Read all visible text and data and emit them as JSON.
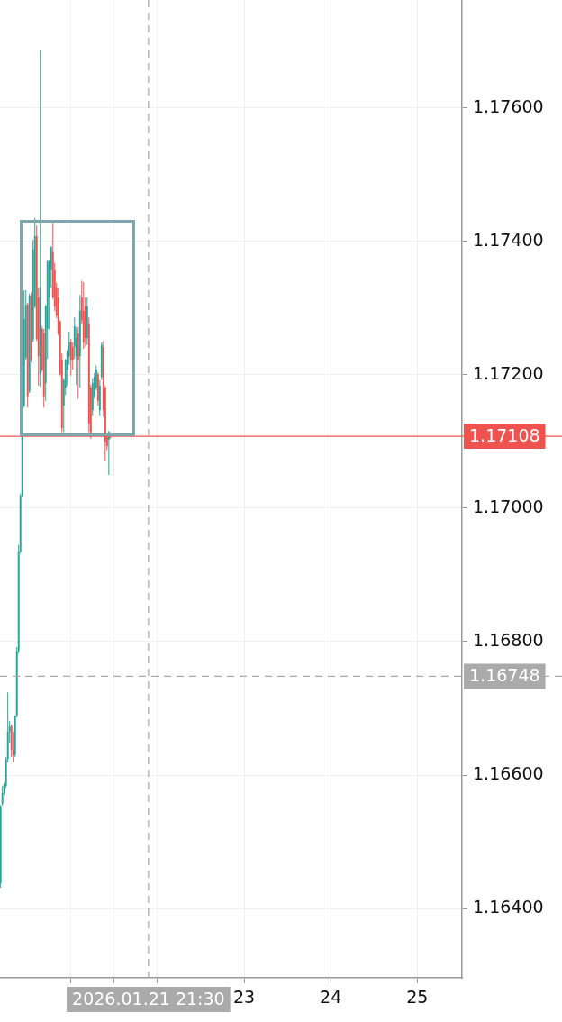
{
  "chart_data": {
    "type": "candlestick",
    "x": [
      "2026-01-20T04:30",
      "2026-01-20T05:00",
      "2026-01-20T05:30",
      "2026-01-20T06:00",
      "2026-01-20T06:30",
      "2026-01-20T07:00",
      "2026-01-20T07:30",
      "2026-01-20T08:00",
      "2026-01-20T08:30",
      "2026-01-20T09:00",
      "2026-01-20T09:30",
      "2026-01-20T10:00",
      "2026-01-20T10:30",
      "2026-01-20T11:00",
      "2026-01-20T11:30",
      "2026-01-20T12:00",
      "2026-01-20T12:30",
      "2026-01-20T13:00",
      "2026-01-20T13:30",
      "2026-01-20T14:00",
      "2026-01-20T14:30",
      "2026-01-20T15:00",
      "2026-01-20T15:30",
      "2026-01-20T16:00",
      "2026-01-20T16:30",
      "2026-01-20T17:00",
      "2026-01-20T17:30",
      "2026-01-20T18:00",
      "2026-01-20T18:30",
      "2026-01-20T19:00",
      "2026-01-20T19:30",
      "2026-01-20T20:00",
      "2026-01-20T20:30",
      "2026-01-20T21:00",
      "2026-01-20T21:30",
      "2026-01-20T22:00",
      "2026-01-20T22:30",
      "2026-01-20T23:00",
      "2026-01-20T23:30",
      "2026-01-21T00:00",
      "2026-01-21T00:30",
      "2026-01-21T01:00",
      "2026-01-21T01:30",
      "2026-01-21T02:00",
      "2026-01-21T02:30",
      "2026-01-21T03:00",
      "2026-01-21T03:30",
      "2026-01-21T04:00",
      "2026-01-21T04:30",
      "2026-01-21T05:00",
      "2026-01-21T05:30",
      "2026-01-21T06:00",
      "2026-01-21T06:30",
      "2026-01-21T07:00",
      "2026-01-21T07:30",
      "2026-01-21T08:00",
      "2026-01-21T08:30",
      "2026-01-21T09:00",
      "2026-01-21T09:30",
      "2026-01-21T10:00",
      "2026-01-21T10:30",
      "2026-01-21T11:00"
    ],
    "ohlc": [
      [
        1.16438,
        1.16555,
        1.16431,
        1.16553
      ],
      [
        1.16557,
        1.16584,
        1.16554,
        1.16573
      ],
      [
        1.16573,
        1.16589,
        1.1657,
        1.16586
      ],
      [
        1.16584,
        1.16627,
        1.16581,
        1.16624
      ],
      [
        1.16624,
        1.16724,
        1.16619,
        1.16665
      ],
      [
        1.16665,
        1.16681,
        1.16649,
        1.16673
      ],
      [
        1.16673,
        1.16676,
        1.16627,
        1.16638
      ],
      [
        1.16638,
        1.16665,
        1.16619,
        1.1663
      ],
      [
        1.1663,
        1.16689,
        1.16627,
        1.16689
      ],
      [
        1.16689,
        1.16792,
        1.16686,
        1.16786
      ],
      [
        1.16786,
        1.16945,
        1.16782,
        1.16935
      ],
      [
        1.16935,
        1.17022,
        1.16932,
        1.17019
      ],
      [
        1.17019,
        1.17218,
        1.17016,
        1.17218
      ],
      [
        1.17154,
        1.17327,
        1.17151,
        1.17284
      ],
      [
        1.17226,
        1.17327,
        1.17222,
        1.17305
      ],
      [
        1.17305,
        1.17308,
        1.17151,
        1.17168
      ],
      [
        1.17176,
        1.17322,
        1.17173,
        1.17319
      ],
      [
        1.17319,
        1.17324,
        1.17219,
        1.17222
      ],
      [
        1.17253,
        1.17403,
        1.17249,
        1.17388
      ],
      [
        1.17303,
        1.17435,
        1.173,
        1.17408
      ],
      [
        1.17408,
        1.17424,
        1.17251,
        1.17254
      ],
      [
        1.17316,
        1.1733,
        1.17184,
        1.17228
      ],
      [
        1.17201,
        1.17686,
        1.17182,
        1.1733
      ],
      [
        1.17269,
        1.17273,
        1.17205,
        1.17208
      ],
      [
        1.17262,
        1.17269,
        1.17151,
        1.17168
      ],
      [
        1.17188,
        1.17305,
        1.17161,
        1.17303
      ],
      [
        1.17269,
        1.17373,
        1.17224,
        1.1737
      ],
      [
        1.17316,
        1.17373,
        1.17268,
        1.1737
      ],
      [
        1.17357,
        1.17393,
        1.1733,
        1.17391
      ],
      [
        1.17384,
        1.17428,
        1.17314,
        1.17316
      ],
      [
        1.17357,
        1.17368,
        1.17296,
        1.17303
      ],
      [
        1.1733,
        1.17338,
        1.17285,
        1.17289
      ],
      [
        1.17316,
        1.1733,
        1.17259,
        1.17262
      ],
      [
        1.1728,
        1.17282,
        1.17199,
        1.17201
      ],
      [
        1.17222,
        1.17232,
        1.17114,
        1.1712
      ],
      [
        1.17154,
        1.17195,
        1.17114,
        1.17192
      ],
      [
        1.17181,
        1.17224,
        1.1717,
        1.17222
      ],
      [
        1.17208,
        1.17238,
        1.17184,
        1.17235
      ],
      [
        1.17228,
        1.17265,
        1.17215,
        1.17249
      ],
      [
        1.17249,
        1.17254,
        1.17199,
        1.17222
      ],
      [
        1.17242,
        1.17249,
        1.17208,
        1.17222
      ],
      [
        1.17242,
        1.17286,
        1.17224,
        1.17273
      ],
      [
        1.17228,
        1.17272,
        1.17185,
        1.17255
      ],
      [
        1.17262,
        1.17272,
        1.17164,
        1.17222
      ],
      [
        1.17228,
        1.1732,
        1.17181,
        1.17296
      ],
      [
        1.17316,
        1.17341,
        1.17276,
        1.17282
      ],
      [
        1.17296,
        1.17339,
        1.17239,
        1.17249
      ],
      [
        1.17303,
        1.17316,
        1.17242,
        1.17255
      ],
      [
        1.17255,
        1.17316,
        1.17245,
        1.17303
      ],
      [
        1.17276,
        1.17286,
        1.17114,
        1.17127
      ],
      [
        1.17181,
        1.17185,
        1.17104,
        1.17114
      ],
      [
        1.17147,
        1.17195,
        1.17138,
        1.17188
      ],
      [
        1.17168,
        1.17203,
        1.17164,
        1.17197
      ],
      [
        1.17181,
        1.17214,
        1.17177,
        1.17208
      ],
      [
        1.17201,
        1.17204,
        1.17154,
        1.17161
      ],
      [
        1.17147,
        1.17192,
        1.17138,
        1.17184
      ],
      [
        1.17197,
        1.17249,
        1.17192,
        1.17245
      ],
      [
        1.17242,
        1.17251,
        1.17137,
        1.17147
      ],
      [
        1.17181,
        1.17184,
        1.1707,
        1.171
      ],
      [
        1.17107,
        1.1711,
        1.17087,
        1.17093
      ],
      [
        1.17103,
        1.17116,
        1.1705,
        1.17114
      ],
      [
        1.1711,
        1.17114,
        1.17104,
        1.17108
      ]
    ],
    "colors": [
      "#26a69a",
      "#26a69a",
      "#26a69a",
      "#26a69a",
      "#26a69a",
      "#26a69a",
      "#ef5350",
      "#ef5350",
      "#26a69a",
      "#26a69a",
      "#26a69a",
      "#26a69a",
      "#26a69a",
      "#26a69a",
      "#26a69a",
      "#ef5350",
      "#26a69a",
      "#ef5350",
      "#26a69a",
      "#26a69a",
      "#ef5350",
      "#ef5350",
      "#26a69a",
      "#ef5350",
      "#ef5350",
      "#26a69a",
      "#26a69a",
      "#26a69a",
      "#26a69a",
      "#ef5350",
      "#ef5350",
      "#ef5350",
      "#ef5350",
      "#ef5350",
      "#ef5350",
      "#26a69a",
      "#26a69a",
      "#26a69a",
      "#26a69a",
      "#ef5350",
      "#ef5350",
      "#26a69a",
      "#26a69a",
      "#ef5350",
      "#26a69a",
      "#ef5350",
      "#ef5350",
      "#ef5350",
      "#26a69a",
      "#ef5350",
      "#ef5350",
      "#26a69a",
      "#26a69a",
      "#26a69a",
      "#ef5350",
      "#26a69a",
      "#26a69a",
      "#ef5350",
      "#ef5350",
      "#ef5350",
      "#26a69a",
      "#ef5350"
    ],
    "xlim": [
      "2026-01-20T04:20",
      "2026-01-25T12:25"
    ],
    "xticks": [
      {
        "value": "2026-01-21",
        "label": null
      },
      {
        "value": "2026-01-21T12:00",
        "label": null
      },
      {
        "value": "2026-01-22",
        "label": null
      },
      {
        "value": "2026-01-23",
        "label": "23"
      },
      {
        "value": "2026-01-24",
        "label": "24"
      },
      {
        "value": "2026-01-25",
        "label": "25"
      }
    ],
    "ylim": [
      1.16296,
      1.17762
    ],
    "yticks": [
      {
        "value": 1.164,
        "label": "1.16400"
      },
      {
        "value": 1.166,
        "label": "1.16600"
      },
      {
        "value": 1.168,
        "label": "1.16800"
      },
      {
        "value": 1.17,
        "label": "1.17000"
      },
      {
        "value": 1.172,
        "label": "1.17200"
      },
      {
        "value": 1.174,
        "label": "1.17400"
      },
      {
        "value": 1.176,
        "label": "1.17600"
      }
    ],
    "grid": true,
    "ref_lines": [
      {
        "axis": "y",
        "value": 1.17108,
        "label": "1.17108",
        "color": "#ef5350",
        "line_style": "solid"
      },
      {
        "axis": "y",
        "value": 1.16748,
        "label": "1.16748",
        "color": "#aaaaaa",
        "line_style": "dashed"
      },
      {
        "axis": "x",
        "value": "2026-01-21T21:30",
        "label": "2026.01.21 21:30",
        "color": "#aaaaaa",
        "line_style": "dashed"
      }
    ]
  }
}
